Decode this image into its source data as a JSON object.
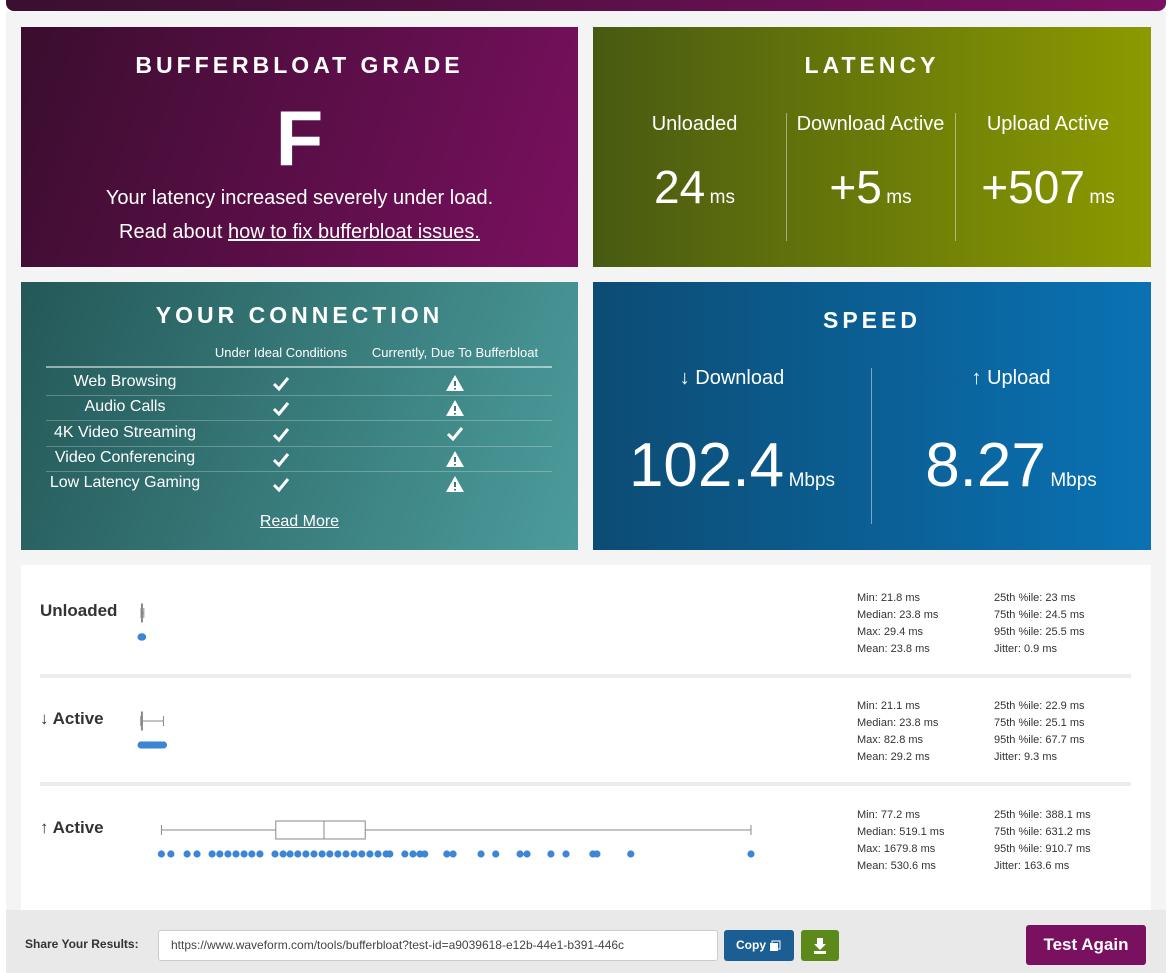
{
  "grade": {
    "title": "BUFFERBLOAT GRADE",
    "grade": "F",
    "message": "Your latency increased severely under load.",
    "read_prefix": "Read about",
    "link": "how to fix bufferbloat issues."
  },
  "latency": {
    "title": "LATENCY",
    "columns": [
      {
        "label": "Unloaded",
        "value": "24",
        "unit": "ms"
      },
      {
        "label": "Download Active",
        "value": "+5",
        "unit": "ms"
      },
      {
        "label": "Upload Active",
        "value": "+507",
        "unit": "ms"
      }
    ]
  },
  "connection": {
    "title": "YOUR CONNECTION",
    "headers": [
      "Under Ideal Conditions",
      "Currently, Due To Bufferbloat"
    ],
    "rows": [
      "Web Browsing",
      "Audio Calls",
      "4K Video Streaming",
      "Video Conferencing",
      "Low Latency Gaming"
    ],
    "read_more": "Read More"
  },
  "speed": {
    "title": "SPEED",
    "download": {
      "label": "↓ Download",
      "value": "102.4",
      "unit": "Mbps"
    },
    "upload": {
      "label": "↑ Upload",
      "value": "8.27",
      "unit": "Mbps"
    }
  },
  "plots": [
    {
      "label": "Unloaded",
      "stats": {
        "min": {
          "label": "Min:",
          "value": 21.8,
          "unit": "ms"
        },
        "median": {
          "label": "Median:",
          "value": 23.8,
          "unit": "ms"
        },
        "max": {
          "label": "Max:",
          "value": 29.4,
          "unit": "ms"
        },
        "mean": {
          "label": "Mean:",
          "value": 23.8,
          "unit": "ms"
        },
        "p25": {
          "label": "25th %ile:",
          "value": 23,
          "unit": "ms"
        },
        "p75": {
          "label": "75th %ile:",
          "value": 24.5,
          "unit": "ms"
        },
        "p95": {
          "label": "95th %ile:",
          "value": 25.5,
          "unit": "ms"
        },
        "jitter": {
          "label": "Jitter:",
          "value": 0.9,
          "unit": "ms"
        }
      },
      "samples": [
        22,
        23,
        24,
        25,
        26
      ]
    },
    {
      "label": "↓ Active",
      "stats": {
        "min": {
          "label": "Min:",
          "value": 21.1,
          "unit": "ms"
        },
        "median": {
          "label": "Median:",
          "value": 23.8,
          "unit": "ms"
        },
        "max": {
          "label": "Max:",
          "value": 82.8,
          "unit": "ms"
        },
        "mean": {
          "label": "Mean:",
          "value": 29.2,
          "unit": "ms"
        },
        "p25": {
          "label": "25th %ile:",
          "value": 22.9,
          "unit": "ms"
        },
        "p75": {
          "label": "75th %ile:",
          "value": 25.1,
          "unit": "ms"
        },
        "p95": {
          "label": "95th %ile:",
          "value": 67.7,
          "unit": "ms"
        },
        "jitter": {
          "label": "Jitter:",
          "value": 9.3,
          "unit": "ms"
        }
      },
      "samples": [
        22,
        26,
        30,
        35,
        40,
        45,
        50,
        55,
        60,
        65,
        70,
        75,
        82.8
      ]
    },
    {
      "label": "↑ Active",
      "stats": {
        "min": {
          "label": "Min:",
          "value": 77.2,
          "unit": "ms"
        },
        "median": {
          "label": "Median:",
          "value": 519.1,
          "unit": "ms"
        },
        "max": {
          "label": "Max:",
          "value": 1679.8,
          "unit": "ms"
        },
        "mean": {
          "label": "Mean:",
          "value": 530.6,
          "unit": "ms"
        },
        "p25": {
          "label": "25th %ile:",
          "value": 388.1,
          "unit": "ms"
        },
        "p75": {
          "label": "75th %ile:",
          "value": 631.2,
          "unit": "ms"
        },
        "p95": {
          "label": "95th %ile:",
          "value": 910.7,
          "unit": "ms"
        },
        "jitter": {
          "label": "Jitter:",
          "value": 163.6,
          "unit": "ms"
        }
      },
      "samples": [
        77.2,
        103,
        147,
        174,
        215,
        236,
        258,
        280,
        302,
        323,
        345,
        386,
        408,
        427,
        448,
        470,
        492,
        514,
        535,
        557,
        579,
        601,
        622,
        644,
        666,
        688,
        698,
        739,
        761,
        780,
        793,
        853,
        870,
        946,
        986,
        1052,
        1071,
        1136,
        1177,
        1250,
        1261,
        1353,
        1679.8
      ]
    }
  ],
  "footer": {
    "share_label": "Share Your Results:",
    "url": "https://www.waveform.com/tools/bufferbloat?test-id=a9039618-e12b-44e1-b391-446c",
    "copy": "Copy",
    "test_again": "Test Again"
  }
}
